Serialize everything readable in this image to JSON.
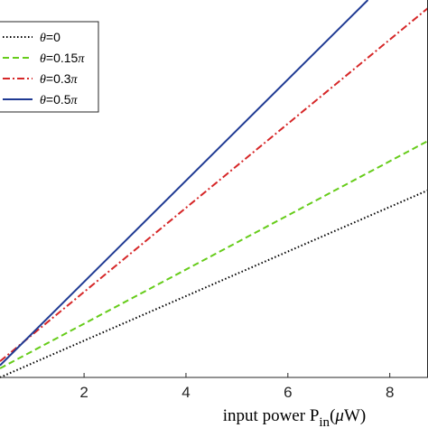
{
  "chart_data": {
    "type": "line",
    "xlabel": {
      "prefix": "input power P",
      "subscript": "in",
      "open": "(",
      "mu": "μ",
      "unit": "W)"
    },
    "ylabel": "",
    "xlim": [
      0.35,
      8.75
    ],
    "ylim": [
      0,
      3.75
    ],
    "xticks": [
      2,
      4,
      6,
      8
    ],
    "xtick_labels": [
      "2",
      "4",
      "6",
      "8"
    ],
    "grid": false,
    "legend": {
      "position": "top-left",
      "entries": [
        {
          "theta": "θ",
          "eq": "=0"
        },
        {
          "theta": "θ",
          "eq": "=0.15",
          "pi": "π"
        },
        {
          "theta": "θ",
          "eq": "=0.3",
          "pi": "π"
        },
        {
          "theta": "θ",
          "eq": "=0.5",
          "pi": "π"
        }
      ]
    },
    "series": [
      {
        "name": "θ=0",
        "color": "#000000",
        "style": "dotted",
        "x": [
          0.35,
          8.75
        ],
        "y": [
          0.0,
          1.86
        ]
      },
      {
        "name": "θ=0.15π",
        "color": "#66cc1a",
        "style": "dashed",
        "x": [
          0.35,
          8.75
        ],
        "y": [
          0.09,
          2.35
        ]
      },
      {
        "name": "θ=0.3π",
        "color": "#d62728",
        "style": "dashdot",
        "x": [
          0.35,
          8.75
        ],
        "y": [
          0.16,
          3.67
        ]
      },
      {
        "name": "θ=0.5π",
        "color": "#1f3a93",
        "style": "solid",
        "x": [
          0.35,
          7.57
        ],
        "y": [
          0.12,
          3.75
        ]
      }
    ]
  }
}
